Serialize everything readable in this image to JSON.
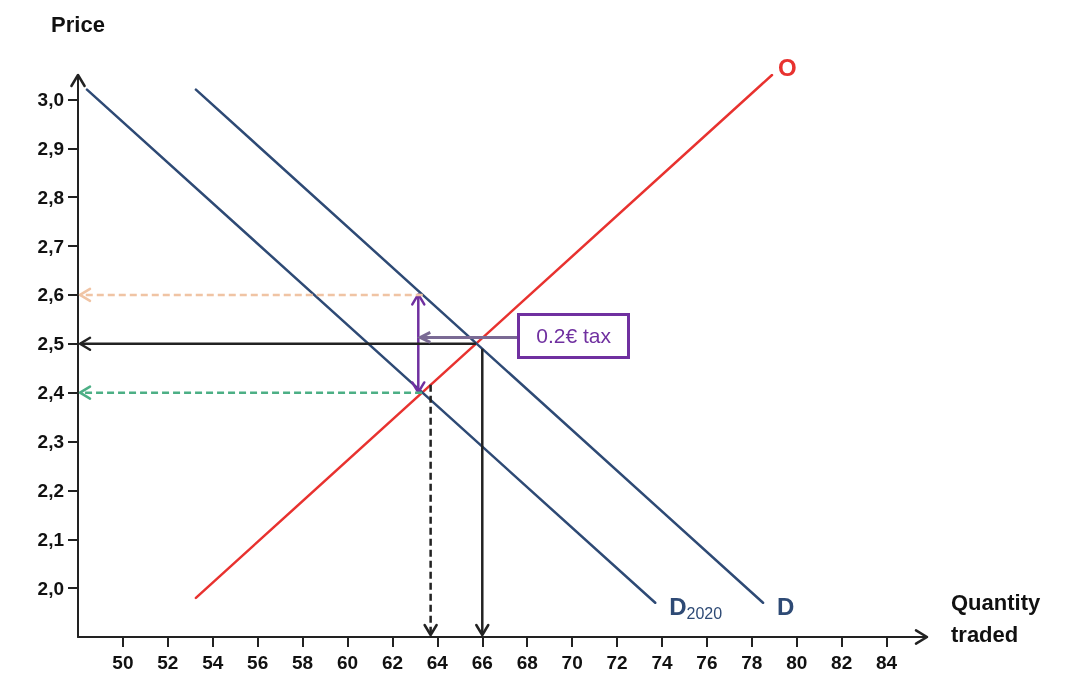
{
  "chart_data": {
    "type": "line",
    "xlabel": "Quantity traded",
    "ylabel": "Price",
    "xlim": [
      48,
      85.8
    ],
    "ylim": [
      1.9,
      3.05
    ],
    "xticks": [
      50,
      52,
      54,
      56,
      58,
      60,
      62,
      64,
      66,
      68,
      70,
      72,
      74,
      76,
      78,
      80,
      82,
      84
    ],
    "yticks": [
      {
        "value": 2.0,
        "label": "2,0"
      },
      {
        "value": 2.1,
        "label": "2,1"
      },
      {
        "value": 2.2,
        "label": "2,2"
      },
      {
        "value": 2.3,
        "label": "2,3"
      },
      {
        "value": 2.4,
        "label": "2,4"
      },
      {
        "value": 2.5,
        "label": "2,5"
      },
      {
        "value": 2.6,
        "label": "2,6"
      },
      {
        "value": 2.7,
        "label": "2,7"
      },
      {
        "value": 2.8,
        "label": "2,8"
      },
      {
        "value": 2.9,
        "label": "2,9"
      },
      {
        "value": 3.0,
        "label": "3,0"
      }
    ],
    "grid": false,
    "legend": false,
    "marker": "none",
    "series": [
      {
        "name": "O",
        "color": "#e8322f",
        "x": [
          53.25,
          78.9
        ],
        "values": [
          1.98,
          3.05
        ]
      },
      {
        "name": "D$_{2020}$",
        "color": "#2e4a75",
        "x": [
          48.4,
          73.7
        ],
        "values": [
          3.02,
          1.97
        ]
      },
      {
        "name": "D",
        "color": "#2e4a75",
        "x": [
          53.25,
          78.5
        ],
        "values": [
          3.02,
          1.97
        ]
      }
    ],
    "ref_lines": [
      {
        "axis": "y",
        "value": 2.6,
        "color": "#f0c4a4",
        "line_style": "dashed"
      },
      {
        "axis": "y",
        "value": 2.5,
        "color": "#222222",
        "line_style": "solid"
      },
      {
        "axis": "y",
        "value": 2.4,
        "color": "#4caf85",
        "line_style": "dashed"
      },
      {
        "axis": "x",
        "value": 63.7,
        "color": "#222222",
        "line_style": "dashed"
      },
      {
        "axis": "x",
        "value": 66,
        "color": "#222222",
        "line_style": "solid"
      }
    ],
    "annotations": [
      "0.2€ tax"
    ]
  }
}
